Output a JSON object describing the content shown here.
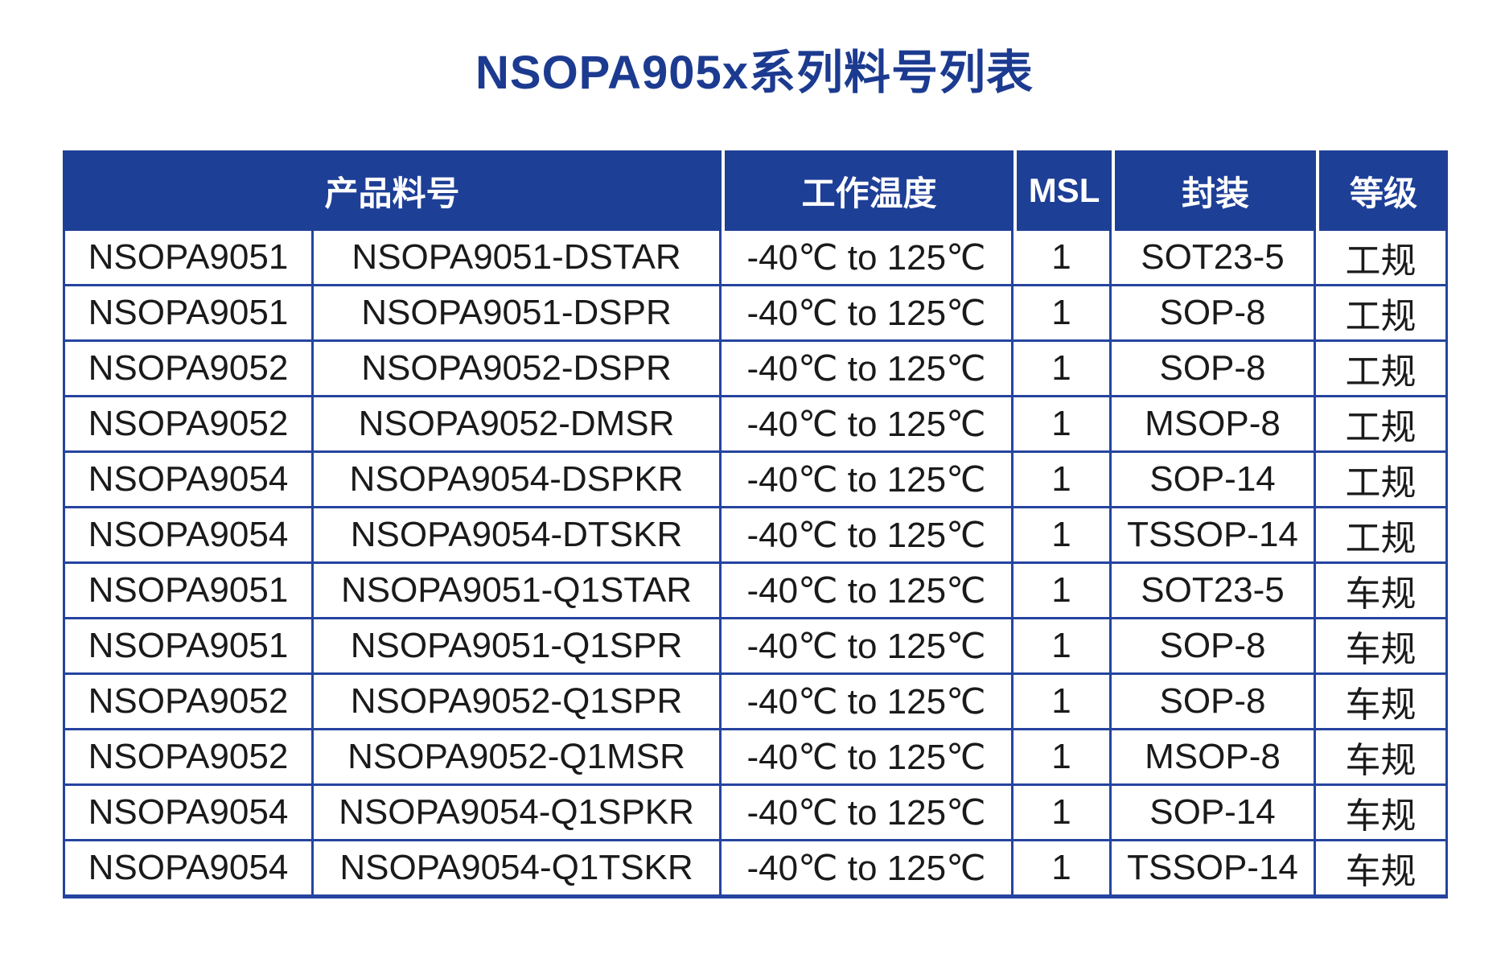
{
  "title": "NSOPA905x系列料号列表",
  "colors": {
    "title_text": "#1c3b90",
    "header_bg": "#1e3f96",
    "header_text": "#ffffff",
    "border": "#2544a0",
    "body_text": "#1a1a1a",
    "page_bg": "#ffffff"
  },
  "table": {
    "headers": [
      {
        "label": "产品料号"
      },
      {
        "label": "工作温度"
      },
      {
        "label": "MSL"
      },
      {
        "label": "封装"
      },
      {
        "label": "等级"
      }
    ],
    "rows": [
      [
        "NSOPA9051",
        "NSOPA9051-DSTAR",
        "-40℃ to 125℃",
        "1",
        "SOT23-5",
        "工规"
      ],
      [
        "NSOPA9051",
        "NSOPA9051-DSPR",
        "-40℃ to 125℃",
        "1",
        "SOP-8",
        "工规"
      ],
      [
        "NSOPA9052",
        "NSOPA9052-DSPR",
        "-40℃ to 125℃",
        "1",
        "SOP-8",
        "工规"
      ],
      [
        "NSOPA9052",
        "NSOPA9052-DMSR",
        "-40℃ to 125℃",
        "1",
        "MSOP-8",
        "工规"
      ],
      [
        "NSOPA9054",
        "NSOPA9054-DSPKR",
        "-40℃ to 125℃",
        "1",
        "SOP-14",
        "工规"
      ],
      [
        "NSOPA9054",
        "NSOPA9054-DTSKR",
        "-40℃ to 125℃",
        "1",
        "TSSOP-14",
        "工规"
      ],
      [
        "NSOPA9051",
        "NSOPA9051-Q1STAR",
        "-40℃ to 125℃",
        "1",
        "SOT23-5",
        "车规"
      ],
      [
        "NSOPA9051",
        "NSOPA9051-Q1SPR",
        "-40℃ to 125℃",
        "1",
        "SOP-8",
        "车规"
      ],
      [
        "NSOPA9052",
        "NSOPA9052-Q1SPR",
        "-40℃ to 125℃",
        "1",
        "SOP-8",
        "车规"
      ],
      [
        "NSOPA9052",
        "NSOPA9052-Q1MSR",
        "-40℃ to 125℃",
        "1",
        "MSOP-8",
        "车规"
      ],
      [
        "NSOPA9054",
        "NSOPA9054-Q1SPKR",
        "-40℃ to 125℃",
        "1",
        "SOP-14",
        "车规"
      ],
      [
        "NSOPA9054",
        "NSOPA9054-Q1TSKR",
        "-40℃ to 125℃",
        "1",
        "TSSOP-14",
        "车规"
      ]
    ]
  }
}
